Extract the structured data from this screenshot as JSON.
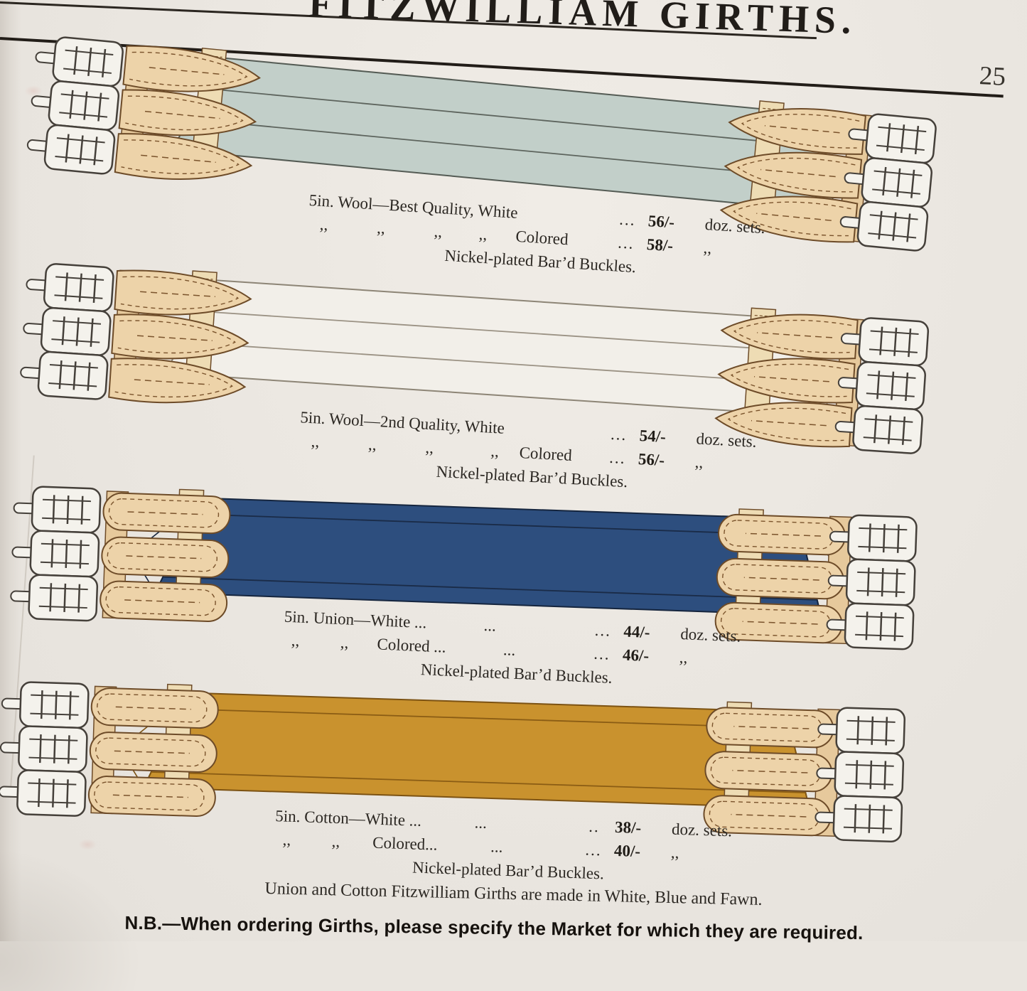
{
  "page": {
    "title": "FITZWILLIAM GIRTHS.",
    "page_number": "25",
    "colors": {
      "paper": "#e9e5df",
      "ink": "#2c2823",
      "rule": "#221d18"
    }
  },
  "products": [
    {
      "id": "wool-best-quality",
      "rows": [
        {
          "left": "5in. Wool—Best Quality, White",
          "dots": "...",
          "price": "56/-",
          "unit": "doz. sets."
        },
        {
          "left": "   ,,            ,,            ,,         ,,       Colored",
          "dots": "...",
          "price": "58/-",
          "unit": ",,"
        }
      ],
      "note": "Nickel-plated Bar’d Buckles.",
      "illustration": {
        "name": "girth-illustration-wool-best",
        "body": "#c2cfc9",
        "edge": "#545b54",
        "line": "#5d645d",
        "chape": "pointed"
      }
    },
    {
      "id": "wool-2nd-quality",
      "rows": [
        {
          "left": "5in. Wool—2nd Quality, White",
          "dots": "...",
          "price": "54/-",
          "unit": "doz. sets."
        },
        {
          "left": "   ,,            ,,            ,,              ,,     Colored",
          "dots": "...",
          "price": "56/-",
          "unit": ",,"
        }
      ],
      "note": "Nickel-plated Bar’d Buckles.",
      "illustration": {
        "name": "girth-illustration-wool-2nd",
        "body": "#f2efe9",
        "edge": "#8d8576",
        "line": "#9b9284",
        "chape": "pointed"
      }
    },
    {
      "id": "union",
      "rows": [
        {
          "left": "5in. Union—White ...              ...",
          "dots": "...",
          "price": "44/-",
          "unit": "doz. sets."
        },
        {
          "left": "  ,,          ,,       Colored ...              ...",
          "dots": "...",
          "price": "46/-",
          "unit": ",,"
        }
      ],
      "note": "Nickel-plated Bar’d Buckles.",
      "illustration": {
        "name": "girth-illustration-union",
        "body": "#2d4e7e",
        "edge": "#15253e",
        "line": "#1a2b47",
        "chape": "round"
      }
    },
    {
      "id": "cotton",
      "rows": [
        {
          "left": "5in. Cotton—White ...             ...",
          "dots": "..",
          "price": "38/-",
          "unit": "doz. sets."
        },
        {
          "left": "  ,,          ,,        Colored...             ...",
          "dots": "...",
          "price": "40/-",
          "unit": ",,"
        }
      ],
      "note": "Nickel-plated Bar’d Buckles.",
      "illustration": {
        "name": "girth-illustration-cotton",
        "body": "#c9922e",
        "edge": "#7c5212",
        "line": "#8a5c14",
        "chape": "round"
      }
    }
  ],
  "footnotes": {
    "materials": "Union and Cotton Fitzwilliam Girths are made in White, Blue and Fawn.",
    "nb": "N.B.—When ordering Girths, please specify the Market for which they are required."
  },
  "illustration_shared": {
    "chape_fill": "#edd3a9",
    "chape_stroke": "#6d4b28",
    "stitch": "#7a532c",
    "buckle_fill": "#f4f2ec",
    "buckle_stroke": "#45403a",
    "strap_fill": "#e6c99c",
    "crossband_fill": "#eedcb4"
  }
}
